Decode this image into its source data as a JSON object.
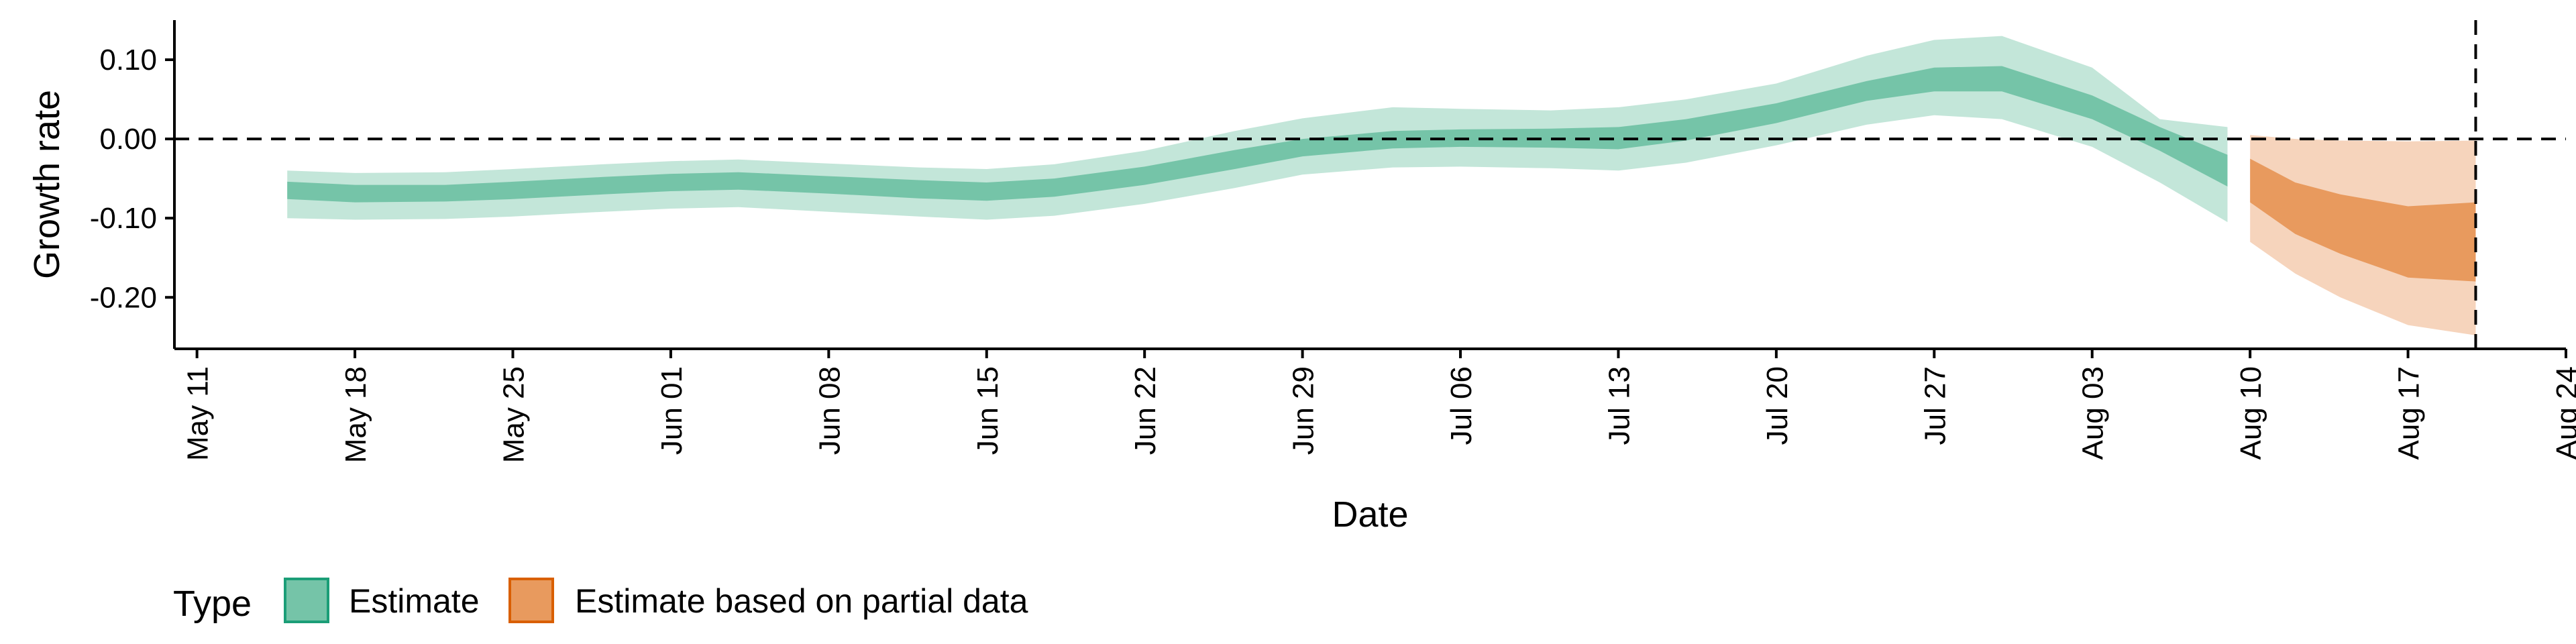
{
  "chart_data": {
    "type": "area",
    "xlabel": "Date",
    "ylabel": "Growth rate",
    "x_axis": {
      "type": "date",
      "range": [
        "2020-05-10",
        "2020-08-24"
      ],
      "ticks": [
        "2020-05-11",
        "2020-05-18",
        "2020-05-25",
        "2020-06-01",
        "2020-06-08",
        "2020-06-15",
        "2020-06-22",
        "2020-06-29",
        "2020-07-06",
        "2020-07-13",
        "2020-07-20",
        "2020-07-27",
        "2020-08-03",
        "2020-08-10",
        "2020-08-17",
        "2020-08-24"
      ],
      "tick_labels": [
        "May 11",
        "May 18",
        "May 25",
        "Jun 01",
        "Jun 08",
        "Jun 15",
        "Jun 22",
        "Jun 29",
        "Jul 06",
        "Jul 13",
        "Jul 20",
        "Jul 27",
        "Aug 03",
        "Aug 10",
        "Aug 17",
        "Aug 24"
      ]
    },
    "y_axis": {
      "range": [
        -0.265,
        0.15
      ],
      "ticks": [
        0.1,
        0.0,
        -0.1,
        -0.2
      ],
      "tick_labels": [
        "0.10",
        "0.00",
        "-0.10",
        "-0.20"
      ]
    },
    "reference_lines": [
      {
        "orientation": "horizontal",
        "value": 0.0,
        "style": "dashed"
      },
      {
        "orientation": "vertical",
        "value": "2020-08-20",
        "style": "dashed"
      }
    ],
    "grid": false,
    "legend": {
      "title": "Type",
      "position": "bottom-left",
      "entries": [
        {
          "label": "Estimate",
          "color": "#75c4a8",
          "border": "#1b9e77"
        },
        {
          "label": "Estimate based on partial data",
          "color": "#e89a5e",
          "border": "#d95f02"
        }
      ]
    },
    "series": [
      {
        "name": "Estimate",
        "color_inner": "#75c4a8",
        "color_outer": "#c3e6d9",
        "points": [
          {
            "date": "2020-05-15",
            "lo90": -0.1,
            "lo50": -0.076,
            "hi50": -0.054,
            "hi90": -0.04
          },
          {
            "date": "2020-05-18",
            "lo90": -0.102,
            "lo50": -0.08,
            "hi50": -0.058,
            "hi90": -0.043
          },
          {
            "date": "2020-05-22",
            "lo90": -0.101,
            "lo50": -0.079,
            "hi50": -0.058,
            "hi90": -0.042
          },
          {
            "date": "2020-05-25",
            "lo90": -0.098,
            "lo50": -0.076,
            "hi50": -0.054,
            "hi90": -0.038
          },
          {
            "date": "2020-05-29",
            "lo90": -0.092,
            "lo50": -0.07,
            "hi50": -0.048,
            "hi90": -0.032
          },
          {
            "date": "2020-06-01",
            "lo90": -0.088,
            "lo50": -0.066,
            "hi50": -0.044,
            "hi90": -0.028
          },
          {
            "date": "2020-06-04",
            "lo90": -0.086,
            "lo50": -0.064,
            "hi50": -0.042,
            "hi90": -0.026
          },
          {
            "date": "2020-06-08",
            "lo90": -0.092,
            "lo50": -0.069,
            "hi50": -0.047,
            "hi90": -0.031
          },
          {
            "date": "2020-06-12",
            "lo90": -0.098,
            "lo50": -0.075,
            "hi50": -0.052,
            "hi90": -0.036
          },
          {
            "date": "2020-06-15",
            "lo90": -0.102,
            "lo50": -0.078,
            "hi50": -0.055,
            "hi90": -0.038
          },
          {
            "date": "2020-06-18",
            "lo90": -0.097,
            "lo50": -0.073,
            "hi50": -0.05,
            "hi90": -0.032
          },
          {
            "date": "2020-06-22",
            "lo90": -0.082,
            "lo50": -0.058,
            "hi50": -0.035,
            "hi90": -0.015
          },
          {
            "date": "2020-06-26",
            "lo90": -0.062,
            "lo50": -0.038,
            "hi50": -0.014,
            "hi90": 0.01
          },
          {
            "date": "2020-06-29",
            "lo90": -0.045,
            "lo50": -0.022,
            "hi50": 0.0,
            "hi90": 0.026
          },
          {
            "date": "2020-07-03",
            "lo90": -0.036,
            "lo50": -0.012,
            "hi50": 0.01,
            "hi90": 0.04
          },
          {
            "date": "2020-07-06",
            "lo90": -0.035,
            "lo50": -0.01,
            "hi50": 0.012,
            "hi90": 0.038
          },
          {
            "date": "2020-07-10",
            "lo90": -0.037,
            "lo50": -0.011,
            "hi50": 0.013,
            "hi90": 0.036
          },
          {
            "date": "2020-07-13",
            "lo90": -0.04,
            "lo50": -0.013,
            "hi50": 0.015,
            "hi90": 0.04
          },
          {
            "date": "2020-07-16",
            "lo90": -0.03,
            "lo50": -0.002,
            "hi50": 0.025,
            "hi90": 0.05
          },
          {
            "date": "2020-07-20",
            "lo90": -0.008,
            "lo50": 0.02,
            "hi50": 0.045,
            "hi90": 0.07
          },
          {
            "date": "2020-07-24",
            "lo90": 0.018,
            "lo50": 0.048,
            "hi50": 0.073,
            "hi90": 0.105
          },
          {
            "date": "2020-07-27",
            "lo90": 0.03,
            "lo50": 0.06,
            "hi50": 0.09,
            "hi90": 0.125
          },
          {
            "date": "2020-07-30",
            "lo90": 0.025,
            "lo50": 0.06,
            "hi50": 0.092,
            "hi90": 0.13
          },
          {
            "date": "2020-08-03",
            "lo90": -0.01,
            "lo50": 0.025,
            "hi50": 0.055,
            "hi90": 0.09
          },
          {
            "date": "2020-08-06",
            "lo90": -0.055,
            "lo50": -0.015,
            "hi50": 0.015,
            "hi90": 0.025
          },
          {
            "date": "2020-08-09",
            "lo90": -0.105,
            "lo50": -0.06,
            "hi50": -0.02,
            "hi90": 0.015
          }
        ]
      },
      {
        "name": "Estimate based on partial data",
        "color_inner": "#e89a5e",
        "color_outer": "#f6d4bc",
        "points": [
          {
            "date": "2020-08-10",
            "lo90": -0.13,
            "lo50": -0.08,
            "hi50": -0.025,
            "hi90": 0.005
          },
          {
            "date": "2020-08-12",
            "lo90": -0.17,
            "lo50": -0.12,
            "hi50": -0.055,
            "hi90": 0.0
          },
          {
            "date": "2020-08-14",
            "lo90": -0.2,
            "lo50": -0.145,
            "hi50": -0.07,
            "hi90": -0.002
          },
          {
            "date": "2020-08-17",
            "lo90": -0.235,
            "lo50": -0.175,
            "hi50": -0.085,
            "hi90": -0.003
          },
          {
            "date": "2020-08-20",
            "lo90": -0.248,
            "lo50": -0.18,
            "hi50": -0.08,
            "hi90": -0.002
          }
        ]
      }
    ]
  }
}
